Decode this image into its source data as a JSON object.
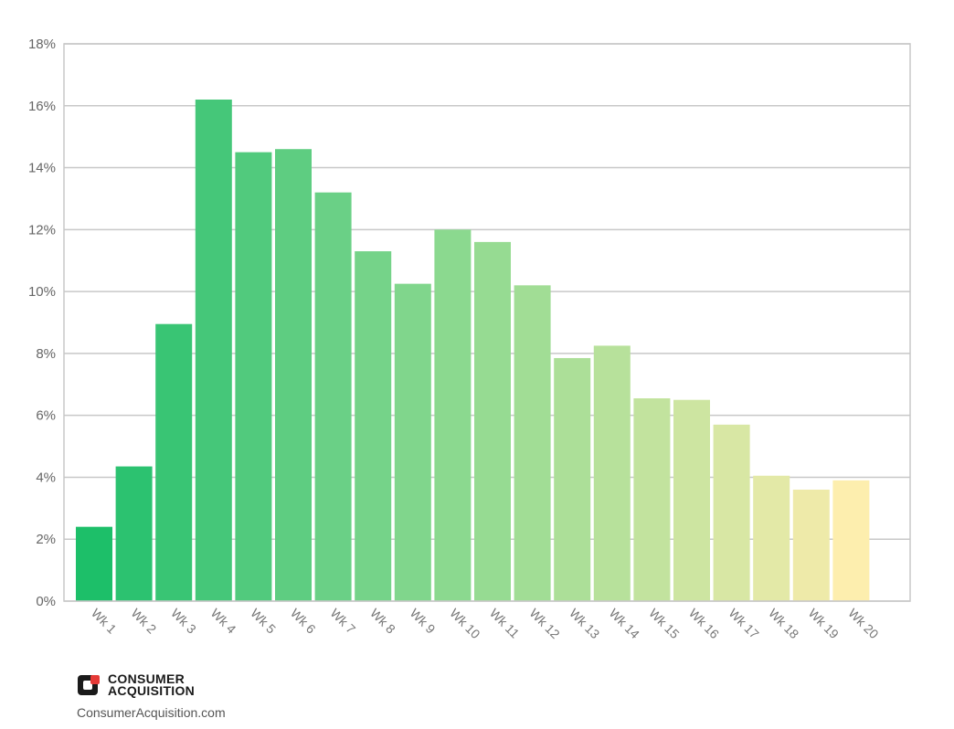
{
  "chart_data": {
    "type": "bar",
    "categories": [
      "Wk 1",
      "Wk 2",
      "Wk 3",
      "Wk 4",
      "Wk 5",
      "Wk 6",
      "Wk 7",
      "Wk 8",
      "Wk 9",
      "Wk 10",
      "Wk 11",
      "Wk 12",
      "Wk 13",
      "Wk 14",
      "Wk 15",
      "Wk 16",
      "Wk 17",
      "Wk 18",
      "Wk 19",
      "Wk 20"
    ],
    "values": [
      2.4,
      4.35,
      8.95,
      16.2,
      14.5,
      14.6,
      13.2,
      11.3,
      10.25,
      12.0,
      11.6,
      10.2,
      7.85,
      8.25,
      6.55,
      6.5,
      5.7,
      4.05,
      3.6,
      3.9
    ],
    "yticks": [
      "0%",
      "2%",
      "4%",
      "6%",
      "8%",
      "10%",
      "12%",
      "14%",
      "16%",
      "18%"
    ],
    "ylim": [
      0,
      18
    ],
    "grid": true,
    "title": "",
    "xlabel": "",
    "ylabel": "",
    "colors": [
      "#1dbf69",
      "#2cc270",
      "#39c574",
      "#45c779",
      "#51ca7d",
      "#5ecd81",
      "#6ad086",
      "#75d389",
      "#80d68c",
      "#8bd98f",
      "#96db92",
      "#a1dd95",
      "#acdf98",
      "#b7e19b",
      "#c2e39e",
      "#cde5a1",
      "#d8e7a4",
      "#e3e9a7",
      "#eeeaa9",
      "#fdeeae"
    ]
  },
  "brand": {
    "line1": "CONSUMER",
    "line2": "ACQUISITION",
    "url": "ConsumerAcquisition.com",
    "icon": "consumer-acquisition-logo-icon",
    "accent": "#e63a37"
  }
}
